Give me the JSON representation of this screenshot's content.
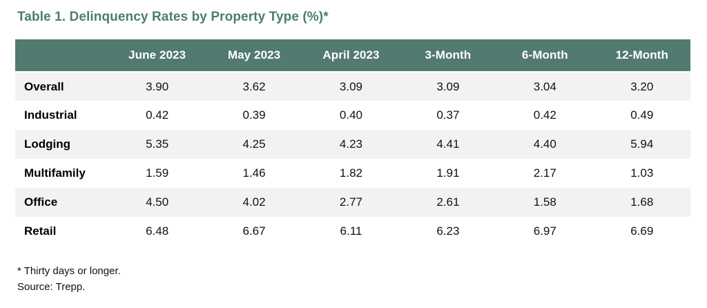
{
  "title": "Table 1. Delinquency Rates by Property Type (%)*",
  "chart_data": {
    "type": "table",
    "title": "Table 1. Delinquency Rates by Property Type (%)*",
    "unit": "percent",
    "columns": [
      "",
      "June 2023",
      "May 2023",
      "April 2023",
      "3-Month",
      "6-Month",
      "12-Month"
    ],
    "rows": [
      {
        "label": "Overall",
        "values": [
          "3.90",
          "3.62",
          "3.09",
          "3.09",
          "3.04",
          "3.20"
        ]
      },
      {
        "label": "Industrial",
        "values": [
          "0.42",
          "0.39",
          "0.40",
          "0.37",
          "0.42",
          "0.49"
        ]
      },
      {
        "label": "Lodging",
        "values": [
          "5.35",
          "4.25",
          "4.23",
          "4.41",
          "4.40",
          "5.94"
        ]
      },
      {
        "label": "Multifamily",
        "values": [
          "1.59",
          "1.46",
          "1.82",
          "1.91",
          "2.17",
          "1.03"
        ]
      },
      {
        "label": "Office",
        "values": [
          "4.50",
          "4.02",
          "2.77",
          "2.61",
          "1.58",
          "1.68"
        ]
      },
      {
        "label": "Retail",
        "values": [
          "6.48",
          "6.67",
          "6.11",
          "6.23",
          "6.97",
          "6.69"
        ]
      }
    ]
  },
  "footnotes": {
    "note": "* Thirty days or longer.",
    "source": "Source: Trepp."
  },
  "colors": {
    "title_text": "#4b7d6e",
    "header_bg": "#527a70",
    "header_text": "#ffffff",
    "row_alt_bg": "#f2f2f2",
    "body_text": "#111111"
  }
}
